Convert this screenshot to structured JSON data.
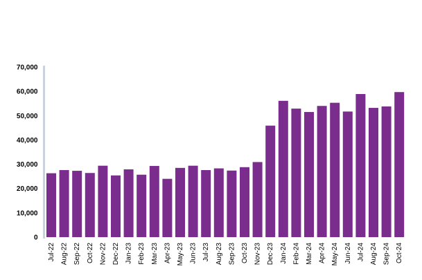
{
  "chart_data": {
    "type": "bar",
    "title": "",
    "xlabel": "",
    "ylabel": "",
    "ylim": [
      0,
      70000
    ],
    "yticks": [
      0,
      10000,
      20000,
      30000,
      40000,
      50000,
      60000,
      70000
    ],
    "ytick_labels": [
      "0",
      "10,000",
      "20,000",
      "30,000",
      "40,000",
      "50,000",
      "60,000",
      "70,000"
    ],
    "grid": false,
    "legend": "none",
    "bar_color": "#7b2d8e",
    "axis_color": "#c9d3de",
    "categories": [
      "Jul-22",
      "Aug-22",
      "Sep-22",
      "Oct-22",
      "Nov-22",
      "Dec-22",
      "Jan-23",
      "Feb-23",
      "Mar-23",
      "Apr-23",
      "May-23",
      "Jun-23",
      "Jul-23",
      "Aug-23",
      "Sep-23",
      "Oct-23",
      "Nov-23",
      "Dec-23",
      "Jan-24",
      "Feb-24",
      "Mar-24",
      "Apr-24",
      "May-24",
      "Jun-24",
      "Jul-24",
      "Aug-24",
      "Sep-24",
      "Oct-24"
    ],
    "values": [
      26300,
      27600,
      27300,
      26400,
      29400,
      25400,
      27900,
      25700,
      29300,
      24000,
      28500,
      29400,
      27600,
      28300,
      27400,
      28800,
      30900,
      45900,
      56100,
      52900,
      51500,
      54000,
      55300,
      51700,
      58900,
      53200,
      53800,
      59700
    ]
  }
}
